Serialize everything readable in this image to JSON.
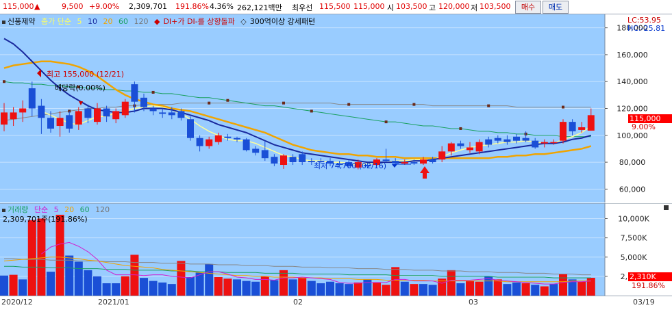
{
  "header": {
    "price": "115,000",
    "change_arrow": "▲",
    "change": "9,500",
    "change_pct": "+9.00%",
    "volume": "2,309,701",
    "volume_ratio": "191.86%",
    "turnover_rate": "4.36%",
    "trade_value": "262,121백만",
    "priority_label": "최우선",
    "ask": "115,500",
    "bid": "115,000",
    "open_label": "시",
    "open": "103,500",
    "high_label": "고",
    "high": "120,000",
    "low_label": "저",
    "low": "103,500",
    "buy_button": "매수",
    "sell_button": "매도"
  },
  "price_panel": {
    "stock_name": "신풍제약",
    "ma_label": "종가 단순",
    "ma_periods": [
      "5",
      "10",
      "20",
      "60",
      "120"
    ],
    "signal_text": "DI+가 DI-를 상향돌파",
    "pattern_text": "300억이상 강세패턴",
    "max_annotation": "최고 155,000 (12/21)",
    "dividend_annotation": "배당락(0.00%)",
    "min_annotation": "최저 74,700 (02/16)",
    "lc_text": "LC:53.95",
    "hc_text": "HC:-25.81",
    "last_price_tag": "115,000",
    "last_pct_tag": "9.00%",
    "y_ticks": [
      "180,000",
      "160,000",
      "140,000",
      "120,000",
      "100,000",
      "80,000",
      "60,000"
    ]
  },
  "volume_panel": {
    "title": "거래량",
    "ma_label": "단순",
    "ma_periods": [
      "5",
      "20",
      "60",
      "120"
    ],
    "current_text": "2,309,701주(191.86%)",
    "last_volume_tag": "2,310K",
    "last_pct_tag": "191.86%",
    "y_ticks": [
      "10,000K",
      "7,500K",
      "5,000K",
      "2,500K"
    ]
  },
  "x_axis": {
    "labels": [
      "2020/12",
      "2021/01",
      "02",
      "03",
      "03/19"
    ]
  },
  "colors": {
    "chart_bg": "#99ccff",
    "up": "#ee1111",
    "down": "#1a4fd6",
    "ma5": "#ffff99",
    "ma10": "#1a2a9e",
    "ma20": "#f0a400",
    "ma60": "#1aa060",
    "ma120": "#888888"
  },
  "chart_data": [
    {
      "type": "candlestick",
      "title": "신풍제약",
      "ylim": [
        50000,
        190000
      ],
      "candles": [
        {
          "o": 108000,
          "c": 117000,
          "h": 124000,
          "l": 103000
        },
        {
          "o": 112000,
          "c": 117000,
          "h": 121000,
          "l": 107000
        },
        {
          "o": 117000,
          "c": 120000,
          "h": 126000,
          "l": 110000
        },
        {
          "o": 135000,
          "c": 120000,
          "h": 140000,
          "l": 114000
        },
        {
          "o": 122000,
          "c": 113000,
          "h": 127000,
          "l": 101000
        },
        {
          "o": 113000,
          "c": 105000,
          "h": 118000,
          "l": 102000
        },
        {
          "o": 107000,
          "c": 113000,
          "h": 118000,
          "l": 99000
        },
        {
          "o": 115000,
          "c": 105000,
          "h": 118000,
          "l": 102000
        },
        {
          "o": 108000,
          "c": 118000,
          "h": 121000,
          "l": 104000
        },
        {
          "o": 120000,
          "c": 113000,
          "h": 123000,
          "l": 109000
        },
        {
          "o": 110000,
          "c": 120000,
          "h": 124000,
          "l": 108000
        },
        {
          "o": 120000,
          "c": 114000,
          "h": 122000,
          "l": 110000
        },
        {
          "o": 112000,
          "c": 118000,
          "h": 120000,
          "l": 109000
        },
        {
          "o": 115000,
          "c": 125000,
          "h": 127000,
          "l": 113000
        },
        {
          "o": 138000,
          "c": 125000,
          "h": 140000,
          "l": 117000
        },
        {
          "o": 128000,
          "c": 121000,
          "h": 131000,
          "l": 118000
        },
        {
          "o": 120000,
          "c": 118000,
          "h": 122000,
          "l": 115000
        },
        {
          "o": 117000,
          "c": 116000,
          "h": 120000,
          "l": 113000
        },
        {
          "o": 117000,
          "c": 115000,
          "h": 121000,
          "l": 112000
        },
        {
          "o": 118000,
          "c": 113000,
          "h": 120000,
          "l": 111000
        },
        {
          "o": 112000,
          "c": 98000,
          "h": 114000,
          "l": 96000
        },
        {
          "o": 98000,
          "c": 92000,
          "h": 100000,
          "l": 88000
        },
        {
          "o": 92000,
          "c": 97000,
          "h": 99000,
          "l": 90000
        },
        {
          "o": 95000,
          "c": 100000,
          "h": 102000,
          "l": 93000
        },
        {
          "o": 99000,
          "c": 98000,
          "h": 101000,
          "l": 96000
        },
        {
          "o": 98000,
          "c": 97000,
          "h": 99000,
          "l": 95000
        },
        {
          "o": 97000,
          "c": 89000,
          "h": 98000,
          "l": 88000
        },
        {
          "o": 90000,
          "c": 87000,
          "h": 92000,
          "l": 85000
        },
        {
          "o": 89000,
          "c": 83000,
          "h": 96000,
          "l": 81000
        },
        {
          "o": 84000,
          "c": 79000,
          "h": 86000,
          "l": 77000
        },
        {
          "o": 78000,
          "c": 85000,
          "h": 86000,
          "l": 75000
        },
        {
          "o": 84000,
          "c": 80000,
          "h": 86000,
          "l": 78000
        },
        {
          "o": 86000,
          "c": 80000,
          "h": 88000,
          "l": 78000
        },
        {
          "o": 81000,
          "c": 80000,
          "h": 83000,
          "l": 78000
        },
        {
          "o": 81000,
          "c": 80000,
          "h": 83000,
          "l": 79000
        },
        {
          "o": 81000,
          "c": 79000,
          "h": 83000,
          "l": 77000
        },
        {
          "o": 79000,
          "c": 78000,
          "h": 81000,
          "l": 76000
        },
        {
          "o": 80000,
          "c": 77000,
          "h": 82000,
          "l": 76000
        },
        {
          "o": 76000,
          "c": 80000,
          "h": 82000,
          "l": 74700
        },
        {
          "o": 78000,
          "c": 77000,
          "h": 79000,
          "l": 76000
        },
        {
          "o": 78000,
          "c": 82000,
          "h": 83000,
          "l": 77000
        },
        {
          "o": 82000,
          "c": 81000,
          "h": 90000,
          "l": 80000
        },
        {
          "o": 81000,
          "c": 79000,
          "h": 83000,
          "l": 78000
        },
        {
          "o": 79000,
          "c": 80000,
          "h": 82000,
          "l": 78000
        },
        {
          "o": 80000,
          "c": 79000,
          "h": 82000,
          "l": 78000
        },
        {
          "o": 79000,
          "c": 82000,
          "h": 84000,
          "l": 78000
        },
        {
          "o": 82000,
          "c": 80000,
          "h": 84000,
          "l": 79000
        },
        {
          "o": 82000,
          "c": 88000,
          "h": 92000,
          "l": 80000
        },
        {
          "o": 88000,
          "c": 94000,
          "h": 95000,
          "l": 85000
        },
        {
          "o": 94000,
          "c": 92000,
          "h": 96000,
          "l": 90000
        },
        {
          "o": 89000,
          "c": 91000,
          "h": 95000,
          "l": 87000
        },
        {
          "o": 88000,
          "c": 95000,
          "h": 97000,
          "l": 86000
        },
        {
          "o": 97000,
          "c": 93000,
          "h": 99000,
          "l": 91000
        },
        {
          "o": 98000,
          "c": 96000,
          "h": 100000,
          "l": 94000
        },
        {
          "o": 97000,
          "c": 95000,
          "h": 100000,
          "l": 93000
        },
        {
          "o": 99000,
          "c": 96000,
          "h": 101000,
          "l": 94000
        },
        {
          "o": 98000,
          "c": 96000,
          "h": 103000,
          "l": 95000
        },
        {
          "o": 96000,
          "c": 91000,
          "h": 98000,
          "l": 90000
        },
        {
          "o": 94000,
          "c": 95000,
          "h": 97000,
          "l": 91000
        },
        {
          "o": 95000,
          "c": 95000,
          "h": 97000,
          "l": 93000
        },
        {
          "o": 96000,
          "c": 110000,
          "h": 112000,
          "l": 94000
        },
        {
          "o": 110000,
          "c": 103000,
          "h": 112000,
          "l": 100000
        },
        {
          "o": 104000,
          "c": 106000,
          "h": 110000,
          "l": 102000
        },
        {
          "o": 103500,
          "c": 115000,
          "h": 120000,
          "l": 103500
        }
      ],
      "ma5": [
        null,
        null,
        null,
        null,
        118000,
        115000,
        112000,
        109000,
        108000,
        111000,
        114000,
        114000,
        117000,
        118000,
        120000,
        121000,
        122000,
        121000,
        119000,
        116000,
        112000,
        107000,
        103000,
        100000,
        97000,
        96000,
        96000,
        94000,
        91000,
        88000,
        85000,
        84000,
        82000,
        81000,
        81000,
        80000,
        80000,
        79000,
        78000,
        79000,
        79000,
        80000,
        81000,
        81000,
        82000,
        82000,
        82000,
        84000,
        87000,
        89000,
        91000,
        92000,
        93000,
        94000,
        95000,
        95000,
        96000,
        95000,
        94000,
        94000,
        97000,
        99000,
        102000,
        107000
      ],
      "ma10": [
        172000,
        168000,
        162000,
        155000,
        148000,
        141000,
        135000,
        130000,
        126000,
        122000,
        119000,
        118000,
        117000,
        117000,
        118000,
        120000,
        120000,
        120000,
        119000,
        117000,
        115000,
        113000,
        111000,
        108000,
        106000,
        104000,
        102000,
        99000,
        96000,
        93000,
        91000,
        89000,
        87000,
        86000,
        85000,
        84000,
        83000,
        82000,
        81000,
        80000,
        80000,
        80000,
        80000,
        80000,
        81000,
        81000,
        82000,
        83000,
        84000,
        85000,
        86000,
        87000,
        88000,
        89000,
        90000,
        91000,
        92000,
        93000,
        94000,
        94000,
        95000,
        97000,
        98000,
        100000
      ],
      "ma20": [
        150000,
        152000,
        153000,
        154000,
        155000,
        155000,
        154000,
        153000,
        151000,
        148000,
        144000,
        139000,
        134000,
        130000,
        127000,
        125000,
        123000,
        122000,
        120000,
        119000,
        118000,
        116000,
        114000,
        112000,
        110000,
        108000,
        106000,
        104000,
        102000,
        99000,
        96000,
        93000,
        91000,
        89000,
        88000,
        87000,
        86000,
        86000,
        85000,
        85000,
        84000,
        84000,
        84000,
        83000,
        83000,
        83000,
        83000,
        83000,
        83000,
        83000,
        83000,
        83000,
        83000,
        84000,
        84000,
        85000,
        85000,
        86000,
        86000,
        87000,
        88000,
        89000,
        90000,
        92000
      ],
      "ma60": [
        140000,
        139000,
        139000,
        138000,
        138000,
        137000,
        137000,
        136000,
        136000,
        135000,
        135000,
        134000,
        134000,
        133000,
        133000,
        132000,
        132000,
        131000,
        131000,
        130000,
        129000,
        128000,
        128000,
        127000,
        126000,
        125000,
        124000,
        123000,
        122000,
        122000,
        121000,
        120000,
        119000,
        118000,
        117000,
        116000,
        115000,
        114000,
        113000,
        112000,
        111000,
        110000,
        110000,
        109000,
        108000,
        107000,
        107000,
        106000,
        105000,
        105000,
        104000,
        103000,
        103000,
        102000,
        102000,
        101000,
        101000,
        100000,
        100000,
        100000,
        99000,
        99000,
        99000,
        99000
      ],
      "ma120": [
        111000,
        112000,
        113000,
        114000,
        115000,
        116000,
        117000,
        118000,
        119000,
        120000,
        120000,
        121000,
        121000,
        122000,
        122000,
        123000,
        123000,
        123000,
        123000,
        124000,
        124000,
        124000,
        124000,
        124000,
        124000,
        124000,
        124000,
        124000,
        124000,
        124000,
        124000,
        124000,
        124000,
        124000,
        124000,
        124000,
        123000,
        123000,
        123000,
        123000,
        123000,
        123000,
        123000,
        123000,
        123000,
        123000,
        122000,
        122000,
        122000,
        122000,
        122000,
        122000,
        122000,
        122000,
        122000,
        121000,
        121000,
        121000,
        121000,
        121000,
        121000,
        121000,
        121000,
        121000
      ]
    },
    {
      "type": "bar",
      "title": "거래량",
      "ylim": [
        0,
        12000
      ],
      "values": [
        2600,
        2700,
        2100,
        9800,
        10000,
        3100,
        10500,
        5200,
        4400,
        3300,
        2500,
        1600,
        1600,
        2500,
        5300,
        2300,
        1900,
        1700,
        1500,
        4500,
        2400,
        3000,
        4100,
        2400,
        2200,
        2100,
        1900,
        1800,
        2500,
        2000,
        3300,
        2100,
        2300,
        1900,
        1600,
        1800,
        1600,
        1500,
        1700,
        2100,
        1700,
        1400,
        3700,
        1800,
        1500,
        1500,
        1400,
        2200,
        3300,
        1600,
        1900,
        1800,
        2500,
        2100,
        1500,
        1700,
        1600,
        1400,
        1200,
        1500,
        2800,
        2100,
        1800,
        2310
      ],
      "up": [
        false,
        true,
        false,
        true,
        true,
        false,
        true,
        false,
        false,
        false,
        false,
        false,
        false,
        true,
        true,
        false,
        false,
        false,
        false,
        true,
        false,
        false,
        false,
        true,
        true,
        false,
        false,
        false,
        true,
        false,
        true,
        false,
        true,
        false,
        false,
        false,
        false,
        false,
        true,
        false,
        true,
        true,
        true,
        false,
        true,
        false,
        false,
        true,
        true,
        false,
        true,
        true,
        false,
        true,
        false,
        false,
        true,
        false,
        true,
        false,
        true,
        false,
        true,
        true
      ],
      "ma5": [
        null,
        null,
        null,
        null,
        5400,
        6300,
        6700,
        6900,
        6400,
        5700,
        4700,
        3300,
        2700,
        2700,
        2700,
        2600,
        2700,
        2700,
        2500,
        2400,
        2300,
        2700,
        3100,
        3100,
        2800,
        2400,
        2300,
        2100,
        2100,
        2000,
        2300,
        2300,
        2400,
        2300,
        2200,
        2100,
        1700,
        1600,
        1600,
        1700,
        1700,
        1700,
        2100,
        2100,
        1900,
        1900,
        1900,
        1600,
        2000,
        2000,
        2000,
        2100,
        2200,
        2000,
        1900,
        1800,
        1700,
        1600,
        1500,
        1500,
        1700,
        1800,
        1800,
        1900
      ],
      "ma20": [
        4500,
        4600,
        4700,
        4800,
        4900,
        5000,
        5000,
        4900,
        4800,
        4600,
        4500,
        4300,
        4100,
        3900,
        3800,
        3700,
        3600,
        3400,
        3300,
        3200,
        3100,
        3000,
        2900,
        2800,
        2700,
        2600,
        2600,
        2500,
        2500,
        2400,
        2400,
        2400,
        2300,
        2300,
        2300,
        2200,
        2200,
        2200,
        2100,
        2100,
        2100,
        2000,
        2000,
        2000,
        2000,
        2000,
        1900,
        1900,
        1900,
        1900,
        1900,
        1900,
        1900,
        1900,
        1800,
        1800,
        1800,
        1800,
        1800,
        1800,
        1800,
        1900,
        1900,
        1900
      ],
      "ma60": [
        3800,
        3800,
        3700,
        3700,
        3700,
        3600,
        3600,
        3600,
        3500,
        3500,
        3500,
        3400,
        3400,
        3400,
        3300,
        3300,
        3300,
        3300,
        3200,
        3200,
        3200,
        3100,
        3100,
        3100,
        3000,
        3000,
        3000,
        3000,
        2900,
        2900,
        2900,
        2900,
        2800,
        2800,
        2800,
        2800,
        2800,
        2700,
        2700,
        2700,
        2700,
        2700,
        2600,
        2600,
        2600,
        2600,
        2600,
        2500,
        2500,
        2500,
        2500,
        2500,
        2500,
        2400,
        2400,
        2400,
        2400,
        2400,
        2400,
        2300,
        2300,
        2300,
        2300,
        2300
      ],
      "ma120": [
        4800,
        4800,
        4700,
        4700,
        4700,
        4600,
        4600,
        4600,
        4500,
        4500,
        4500,
        4400,
        4400,
        4400,
        4300,
        4300,
        4300,
        4200,
        4200,
        4200,
        4100,
        4100,
        4100,
        4000,
        4000,
        4000,
        3900,
        3900,
        3900,
        3800,
        3800,
        3800,
        3700,
        3700,
        3700,
        3600,
        3600,
        3600,
        3500,
        3500,
        3500,
        3400,
        3400,
        3400,
        3300,
        3300,
        3300,
        3200,
        3200,
        3200,
        3100,
        3100,
        3100,
        3000,
        3000,
        3000,
        2900,
        2900,
        2900,
        2800,
        2800,
        2800,
        2700,
        2700
      ]
    }
  ]
}
